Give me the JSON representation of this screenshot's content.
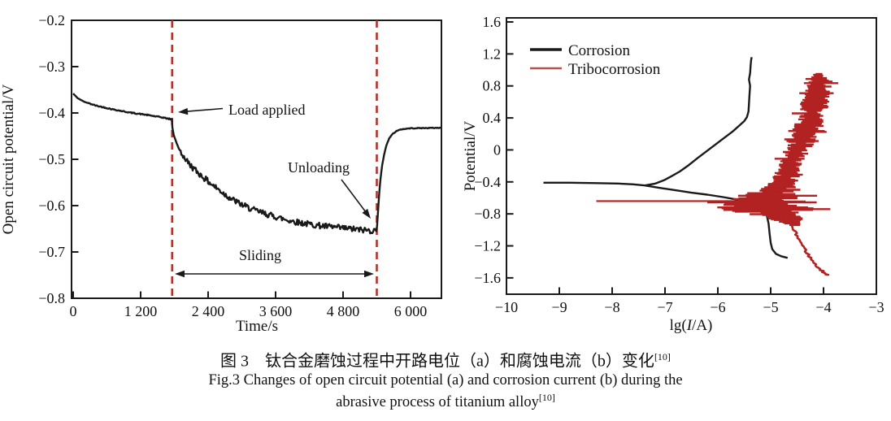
{
  "figure": {
    "caption_zh": "图 3　钛合金磨蚀过程中开路电位（a）和腐蚀电流（b）变化",
    "caption_zh_sup": "[10]",
    "caption_en_line1": "Fig.3 Changes of open circuit potential (a) and corrosion current (b) during the",
    "caption_en_line2": "abrasive process of titanium alloy",
    "caption_en_sup": "[10]"
  },
  "colors": {
    "black": "#1a1a1a",
    "red": "#b22222",
    "dash_red": "#b5312a",
    "legend_red": "#c0504d"
  },
  "chart_data": [
    {
      "id": "a",
      "type": "line",
      "xlabel": "Time/s",
      "ylabel": "Open circuit potential/V",
      "xlim": [
        -30,
        6550
      ],
      "ylim": [
        -0.8,
        -0.2
      ],
      "grid": false,
      "xticks": [
        {
          "v": 0,
          "label": "0"
        },
        {
          "v": 1200,
          "label": "1 200"
        },
        {
          "v": 2400,
          "label": "2 400"
        },
        {
          "v": 3600,
          "label": "3 600"
        },
        {
          "v": 4800,
          "label": "4 800"
        },
        {
          "v": 6000,
          "label": "6 000"
        }
      ],
      "yticks": [
        {
          "v": -0.2,
          "label": "−0.2"
        },
        {
          "v": -0.3,
          "label": "−0.3"
        },
        {
          "v": -0.4,
          "label": "−0.4"
        },
        {
          "v": -0.5,
          "label": "−0.5"
        },
        {
          "v": -0.6,
          "label": "−0.6"
        },
        {
          "v": -0.7,
          "label": "−0.7"
        },
        {
          "v": -0.8,
          "label": "−0.8"
        }
      ],
      "events": {
        "load_applied_t": 1760,
        "unloading_t": 5400
      },
      "annotations": {
        "load_applied": "Load applied",
        "unloading": "Unloading",
        "sliding": "Sliding"
      },
      "series": [
        {
          "name": "open-circuit-potential",
          "color": "black",
          "points": [
            [
              0,
              -0.358
            ],
            [
              80,
              -0.368
            ],
            [
              200,
              -0.376
            ],
            [
              400,
              -0.384
            ],
            [
              700,
              -0.392
            ],
            [
              1000,
              -0.399
            ],
            [
              1300,
              -0.404
            ],
            [
              1600,
              -0.41
            ],
            [
              1755,
              -0.414
            ],
            [
              1765,
              -0.432
            ],
            [
              1790,
              -0.448
            ],
            [
              1830,
              -0.462
            ],
            [
              1880,
              -0.477
            ],
            [
              1940,
              -0.49
            ],
            [
              2000,
              -0.5
            ],
            [
              2100,
              -0.515
            ],
            [
              2250,
              -0.532
            ],
            [
              2400,
              -0.548
            ],
            [
              2550,
              -0.562
            ],
            [
              2700,
              -0.576
            ],
            [
              2850,
              -0.588
            ],
            [
              3000,
              -0.598
            ],
            [
              3200,
              -0.609
            ],
            [
              3400,
              -0.617
            ],
            [
              3600,
              -0.624
            ],
            [
              3800,
              -0.631
            ],
            [
              4000,
              -0.636
            ],
            [
              4250,
              -0.641
            ],
            [
              4500,
              -0.645
            ],
            [
              4750,
              -0.648
            ],
            [
              5000,
              -0.651
            ],
            [
              5200,
              -0.653
            ],
            [
              5390,
              -0.655
            ],
            [
              5405,
              -0.645
            ],
            [
              5420,
              -0.615
            ],
            [
              5440,
              -0.578
            ],
            [
              5465,
              -0.543
            ],
            [
              5495,
              -0.513
            ],
            [
              5530,
              -0.49
            ],
            [
              5570,
              -0.47
            ],
            [
              5620,
              -0.455
            ],
            [
              5680,
              -0.445
            ],
            [
              5750,
              -0.439
            ],
            [
              5850,
              -0.435
            ],
            [
              6000,
              -0.433
            ],
            [
              6550,
              -0.432
            ]
          ],
          "noise": [
            {
              "from": 250,
              "to": 1750,
              "amp": 0.0012
            },
            {
              "from": 1900,
              "to": 5385,
              "amp": 0.0065
            },
            {
              "from": 5700,
              "to": 6550,
              "amp": 0.0008
            }
          ]
        }
      ]
    },
    {
      "id": "b",
      "type": "line",
      "xlabel_parts": [
        "lg(",
        "I",
        "/A)"
      ],
      "ylabel": "Potential/V",
      "xlim": [
        -10,
        -3
      ],
      "ylim": [
        -1.8,
        1.65
      ],
      "grid": false,
      "xticks": [
        {
          "v": -10,
          "label": "−10"
        },
        {
          "v": -9,
          "label": "−9"
        },
        {
          "v": -8,
          "label": "−8"
        },
        {
          "v": -7,
          "label": "−7"
        },
        {
          "v": -6,
          "label": "−6"
        },
        {
          "v": -5,
          "label": "−5"
        },
        {
          "v": -4,
          "label": "−4"
        },
        {
          "v": -3,
          "label": "−3"
        }
      ],
      "yticks": [
        {
          "v": 1.6,
          "label": "1.6"
        },
        {
          "v": 1.2,
          "label": "1.2"
        },
        {
          "v": 0.8,
          "label": "0.8"
        },
        {
          "v": 0.4,
          "label": "0.4"
        },
        {
          "v": 0,
          "label": "0"
        },
        {
          "v": -0.4,
          "label": "−0.4"
        },
        {
          "v": -0.8,
          "label": "−0.8"
        },
        {
          "v": -1.2,
          "label": "−1.2"
        },
        {
          "v": -1.6,
          "label": "−1.6"
        }
      ],
      "legend": [
        {
          "label": "Corrosion",
          "color": "black"
        },
        {
          "label": "Tribocorrosion",
          "color": "legend_red"
        }
      ],
      "series": [
        {
          "name": "corrosion-anodic",
          "color": "black",
          "points": [
            [
              -9.3,
              -0.41
            ],
            [
              -8.8,
              -0.41
            ],
            [
              -8.3,
              -0.415
            ],
            [
              -7.9,
              -0.42
            ],
            [
              -7.6,
              -0.43
            ],
            [
              -7.38,
              -0.445
            ],
            [
              -7.18,
              -0.42
            ],
            [
              -7.02,
              -0.38
            ],
            [
              -6.88,
              -0.33
            ],
            [
              -6.72,
              -0.27
            ],
            [
              -6.55,
              -0.19
            ],
            [
              -6.38,
              -0.1
            ],
            [
              -6.2,
              -0.01
            ],
            [
              -6.02,
              0.08
            ],
            [
              -5.86,
              0.16
            ],
            [
              -5.72,
              0.23
            ],
            [
              -5.6,
              0.3
            ],
            [
              -5.5,
              0.36
            ],
            [
              -5.45,
              0.41
            ],
            [
              -5.42,
              0.48
            ],
            [
              -5.41,
              0.58
            ],
            [
              -5.4,
              0.7
            ],
            [
              -5.39,
              0.8
            ],
            [
              -5.41,
              0.88
            ],
            [
              -5.39,
              0.96
            ],
            [
              -5.38,
              1.05
            ],
            [
              -5.37,
              1.12
            ],
            [
              -5.36,
              1.16
            ]
          ]
        },
        {
          "name": "corrosion-cathodic",
          "color": "black",
          "points": [
            [
              -7.38,
              -0.445
            ],
            [
              -7.1,
              -0.475
            ],
            [
              -6.8,
              -0.505
            ],
            [
              -6.5,
              -0.535
            ],
            [
              -6.2,
              -0.56
            ],
            [
              -5.9,
              -0.59
            ],
            [
              -5.65,
              -0.62
            ],
            [
              -5.45,
              -0.65
            ],
            [
              -5.28,
              -0.685
            ],
            [
              -5.16,
              -0.73
            ],
            [
              -5.08,
              -0.8
            ],
            [
              -5.04,
              -0.92
            ],
            [
              -5.02,
              -1.05
            ],
            [
              -5.0,
              -1.16
            ],
            [
              -4.97,
              -1.24
            ],
            [
              -4.9,
              -1.3
            ],
            [
              -4.8,
              -1.33
            ],
            [
              -4.68,
              -1.35
            ]
          ]
        },
        {
          "name": "tribocorrosion-baseline",
          "color": "red",
          "v": -0.64,
          "lg_from": -8.3,
          "lg_to": -5.45
        },
        {
          "name": "tribocorrosion-band",
          "color": "red",
          "envelope": [
            {
              "v": 0.95,
              "c": -4.12,
              "w": 0.1
            },
            {
              "v": 0.88,
              "c": -4.08,
              "w": 0.28
            },
            {
              "v": 0.7,
              "c": -4.12,
              "w": 0.24
            },
            {
              "v": 0.55,
              "c": -4.18,
              "w": 0.28
            },
            {
              "v": 0.4,
              "c": -4.24,
              "w": 0.26
            },
            {
              "v": 0.25,
              "c": -4.32,
              "w": 0.28
            },
            {
              "v": 0.1,
              "c": -4.42,
              "w": 0.26
            },
            {
              "v": -0.05,
              "c": -4.55,
              "w": 0.26
            },
            {
              "v": -0.2,
              "c": -4.63,
              "w": 0.24
            },
            {
              "v": -0.35,
              "c": -4.72,
              "w": 0.26
            },
            {
              "v": -0.5,
              "c": -4.85,
              "w": 0.35
            },
            {
              "v": -0.6,
              "c": -5.1,
              "w": 0.75
            },
            {
              "v": -0.68,
              "c": -5.3,
              "w": 1.05
            },
            {
              "v": -0.75,
              "c": -5.1,
              "w": 0.95
            },
            {
              "v": -0.82,
              "c": -4.8,
              "w": 0.45
            },
            {
              "v": -0.9,
              "c": -4.62,
              "w": 0.22
            },
            {
              "v": -0.95,
              "c": -4.55,
              "w": 0.13
            }
          ]
        },
        {
          "name": "tribocorrosion-tail",
          "color": "red",
          "points": [
            [
              -4.62,
              -0.95
            ],
            [
              -4.55,
              -1.02
            ],
            [
              -4.48,
              -1.1
            ],
            [
              -4.4,
              -1.19
            ],
            [
              -4.33,
              -1.27
            ],
            [
              -4.25,
              -1.35
            ],
            [
              -4.16,
              -1.43
            ],
            [
              -4.07,
              -1.49
            ],
            [
              -3.98,
              -1.54
            ],
            [
              -3.91,
              -1.57
            ]
          ]
        }
      ]
    }
  ]
}
